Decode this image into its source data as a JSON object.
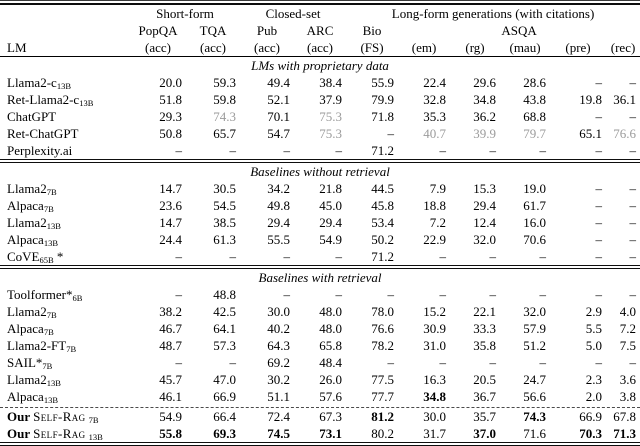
{
  "colors": {
    "text": "#000000",
    "citation_gray": "#9b9b9b",
    "background": "#ffffff"
  },
  "header": {
    "groups": [
      {
        "label": "",
        "span": 1
      },
      {
        "label": "Short-form",
        "span": 2
      },
      {
        "label": "Closed-set",
        "span": 2
      },
      {
        "label": "Long-form generations (with citations)",
        "span": 6
      }
    ],
    "tasks": [
      {
        "label": "",
        "span": 1
      },
      {
        "label": "PopQA",
        "span": 1
      },
      {
        "label": "TQA",
        "span": 1
      },
      {
        "label": "Pub",
        "span": 1
      },
      {
        "label": "ARC",
        "span": 1
      },
      {
        "label": "Bio",
        "span": 1
      },
      {
        "label": "ASQA",
        "span": 5
      }
    ],
    "metrics": [
      "LM",
      "(acc)",
      "(acc)",
      "(acc)",
      "(acc)",
      "(FS)",
      "(em)",
      "(rg)",
      "(mau)",
      "(pre)",
      "(rec)"
    ]
  },
  "sections": [
    {
      "title": "LMs with proprietary data",
      "rows": [
        {
          "name": "Llama2-c",
          "sub": "13B",
          "cells": [
            "20.0",
            "59.3",
            "49.4",
            "38.4",
            "55.9",
            "22.4",
            "29.6",
            "28.6",
            "–",
            "–"
          ],
          "styles": [
            "",
            "",
            "",
            "",
            "",
            "",
            "",
            "",
            "",
            ""
          ]
        },
        {
          "name": "Ret-Llama2-c",
          "sub": "13B",
          "cells": [
            "51.8",
            "59.8",
            "52.1",
            "37.9",
            "79.9",
            "32.8",
            "34.8",
            "43.8",
            "19.8",
            "36.1"
          ],
          "styles": [
            "",
            "",
            "",
            "",
            "",
            "",
            "",
            "",
            "",
            ""
          ]
        },
        {
          "name": "ChatGPT",
          "cells": [
            "29.3",
            "74.3",
            "70.1",
            "75.3",
            "71.8",
            "35.3",
            "36.2",
            "68.8",
            "–",
            "–"
          ],
          "styles": [
            "",
            "g",
            "",
            "g",
            "",
            "",
            "",
            "",
            "",
            ""
          ]
        },
        {
          "name": "Ret-ChatGPT",
          "cells": [
            "50.8",
            "65.7",
            "54.7",
            "75.3",
            "–",
            "40.7",
            "39.9",
            "79.7",
            "65.1",
            "76.6"
          ],
          "styles": [
            "",
            "",
            "",
            "g",
            "",
            "g",
            "g",
            "g",
            "",
            "g"
          ]
        },
        {
          "name": "Perplexity.ai",
          "cells": [
            "–",
            "–",
            "–",
            "–",
            "71.2",
            "–",
            "–",
            "–",
            "–",
            "–"
          ],
          "styles": [
            "",
            "",
            "",
            "",
            "",
            "",
            "",
            "",
            "",
            ""
          ]
        }
      ]
    },
    {
      "title": "Baselines without retrieval",
      "rows": [
        {
          "name": "Llama2",
          "sub": "7B",
          "cells": [
            "14.7",
            "30.5",
            "34.2",
            "21.8",
            "44.5",
            "7.9",
            "15.3",
            "19.0",
            "–",
            "–"
          ],
          "styles": [
            "",
            "",
            "",
            "",
            "",
            "",
            "",
            "",
            "",
            ""
          ]
        },
        {
          "name": "Alpaca",
          "sub": "7B",
          "cells": [
            "23.6",
            "54.5",
            "49.8",
            "45.0",
            "45.8",
            "18.8",
            "29.4",
            "61.7",
            "–",
            "–"
          ],
          "styles": [
            "",
            "",
            "",
            "",
            "",
            "",
            "",
            "",
            "",
            ""
          ]
        },
        {
          "name": "Llama2",
          "sub": "13B",
          "cells": [
            "14.7",
            "38.5",
            "29.4",
            "29.4",
            "53.4",
            "7.2",
            "12.4",
            "16.0",
            "–",
            "–"
          ],
          "styles": [
            "",
            "",
            "",
            "",
            "",
            "",
            "",
            "",
            "",
            ""
          ]
        },
        {
          "name": "Alpaca",
          "sub": "13B",
          "cells": [
            "24.4",
            "61.3",
            "55.5",
            "54.9",
            "50.2",
            "22.9",
            "32.0",
            "70.6",
            "–",
            "–"
          ],
          "styles": [
            "",
            "",
            "",
            "",
            "",
            "",
            "",
            "",
            "",
            ""
          ]
        },
        {
          "name": "CoVE",
          "sub": "65B",
          "suffix": " *",
          "cells": [
            "–",
            "–",
            "–",
            "–",
            "71.2",
            "–",
            "–",
            "–",
            "–",
            "–"
          ],
          "styles": [
            "",
            "",
            "",
            "",
            "",
            "",
            "",
            "",
            "",
            ""
          ]
        }
      ]
    },
    {
      "title": "Baselines with retrieval",
      "dashed_before_row": 7,
      "rows": [
        {
          "name": "Toolformer*",
          "sub": "6B",
          "cells": [
            "–",
            "48.8",
            "–",
            "–",
            "–",
            "–",
            "–",
            "–",
            "–",
            "–"
          ],
          "styles": [
            "",
            "",
            "",
            "",
            "",
            "",
            "",
            "",
            "",
            ""
          ]
        },
        {
          "name": "Llama2",
          "sub": "7B",
          "cells": [
            "38.2",
            "42.5",
            "30.0",
            "48.0",
            "78.0",
            "15.2",
            "22.1",
            "32.0",
            "2.9",
            "4.0"
          ],
          "styles": [
            "",
            "",
            "",
            "",
            "",
            "",
            "",
            "",
            "",
            ""
          ]
        },
        {
          "name": "Alpaca",
          "sub": "7B",
          "cells": [
            "46.7",
            "64.1",
            "40.2",
            "48.0",
            "76.6",
            "30.9",
            "33.3",
            "57.9",
            "5.5",
            "7.2"
          ],
          "styles": [
            "",
            "",
            "",
            "",
            "",
            "",
            "",
            "",
            "",
            ""
          ]
        },
        {
          "name": "Llama2-FT",
          "sub": "7B",
          "cells": [
            "48.7",
            "57.3",
            "64.3",
            "65.8",
            "78.2",
            "31.0",
            "35.8",
            "51.2",
            "5.0",
            "7.5"
          ],
          "styles": [
            "",
            "",
            "",
            "",
            "",
            "",
            "",
            "",
            "",
            ""
          ]
        },
        {
          "name": "SAIL*",
          "sub": "7B",
          "cells": [
            "–",
            "–",
            "69.2",
            "48.4",
            "–",
            "–",
            "–",
            "–",
            "–",
            "–"
          ],
          "styles": [
            "",
            "",
            "",
            "",
            "",
            "",
            "",
            "",
            "",
            ""
          ]
        },
        {
          "name": "Llama2",
          "sub": "13B",
          "cells": [
            "45.7",
            "47.0",
            "30.2",
            "26.0",
            "77.5",
            "16.3",
            "20.5",
            "24.7",
            "2.3",
            "3.6"
          ],
          "styles": [
            "",
            "",
            "",
            "",
            "",
            "",
            "",
            "",
            "",
            ""
          ]
        },
        {
          "name": "Alpaca",
          "sub": "13B",
          "cells": [
            "46.1",
            "66.9",
            "51.1",
            "57.6",
            "77.7",
            "34.8",
            "36.7",
            "56.6",
            "2.0",
            "3.8"
          ],
          "styles": [
            "",
            "",
            "",
            "",
            "",
            "b",
            "",
            "",
            "",
            ""
          ]
        },
        {
          "prefix": "Our",
          "name": "Self-Rag",
          "smallcaps": true,
          "sub": "7B",
          "cells": [
            "54.9",
            "66.4",
            "72.4",
            "67.3",
            "81.2",
            "30.0",
            "35.7",
            "74.3",
            "66.9",
            "67.8"
          ],
          "styles": [
            "",
            "",
            "",
            "",
            "b",
            "",
            "",
            "b",
            "",
            ""
          ]
        },
        {
          "prefix": "Our",
          "name": "Self-Rag",
          "smallcaps": true,
          "sub": "13B",
          "cells": [
            "55.8",
            "69.3",
            "74.5",
            "73.1",
            "80.2",
            "31.7",
            "37.0",
            "71.6",
            "70.3",
            "71.3"
          ],
          "styles": [
            "b",
            "b",
            "b",
            "b",
            "",
            "",
            "b",
            "",
            "b",
            "b"
          ]
        }
      ]
    }
  ]
}
